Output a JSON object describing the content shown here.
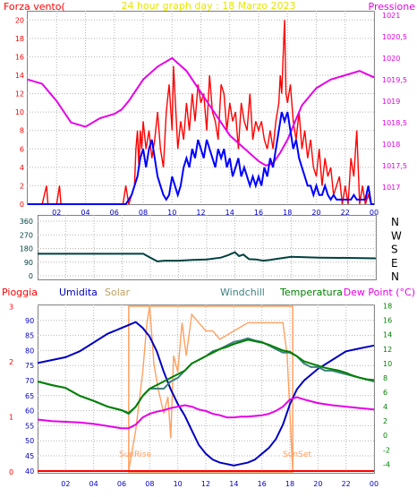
{
  "colors": {
    "frame": "#808080",
    "grid": "#b4b4b4",
    "title": "#e6e600",
    "wind_speed": "#ff0000",
    "wind_mean": "#0000ff",
    "pressure": "#e600e6",
    "direction": "#004040",
    "rain": "#ff0000",
    "humidity": "#0000c0",
    "solar": "#ffa060",
    "windchill": "#408080",
    "temperature": "#008000",
    "dewpoint": "#e600e6",
    "tick_blue": "#0000c0",
    "tick_green": "#008000"
  },
  "chart_data": [
    {
      "type": "line",
      "title": "24 hour graph day : 18 Marzo 2023",
      "left_label": "Forza vento(",
      "right_label": "Pressione",
      "x_ticks": [
        "02",
        "04",
        "06",
        "08",
        "10",
        "12",
        "14",
        "16",
        "18",
        "20",
        "22",
        "00"
      ],
      "y_ticks": [
        "0",
        "2",
        "4",
        "6",
        "8",
        "10",
        "12",
        "14",
        "16",
        "18",
        "20"
      ],
      "y2_ticks": [
        "1017",
        "1017,5",
        "1018",
        "1018,5",
        "1019",
        "1019,5",
        "1020",
        "1020,5",
        "1021"
      ],
      "ylim": [
        0,
        21
      ],
      "y2lim": [
        1016.6,
        1021.1
      ],
      "series": [
        {
          "key": "gust",
          "x": [
            0.0,
            1.0,
            1.3,
            1.4,
            2.0,
            2.2,
            2.3,
            3.0,
            6.6,
            6.8,
            7.0,
            7.2,
            7.4,
            7.5,
            7.6,
            7.7,
            7.8,
            7.9,
            8.0,
            8.2,
            8.4,
            8.6,
            8.8,
            9.0,
            9.2,
            9.4,
            9.6,
            9.8,
            10.0,
            10.1,
            10.2,
            10.4,
            10.6,
            10.8,
            11.0,
            11.2,
            11.4,
            11.6,
            11.8,
            12.0,
            12.2,
            12.4,
            12.6,
            12.8,
            13.0,
            13.2,
            13.4,
            13.6,
            13.8,
            14.0,
            14.2,
            14.4,
            14.6,
            14.8,
            15.0,
            15.2,
            15.4,
            15.6,
            15.8,
            16.0,
            16.2,
            16.4,
            16.6,
            16.8,
            17.0,
            17.2,
            17.4,
            17.5,
            17.6,
            17.7,
            17.8,
            17.9,
            18.0,
            18.2,
            18.4,
            18.6,
            18.8,
            19.0,
            19.2,
            19.4,
            19.6,
            19.8,
            20.0,
            20.2,
            20.4,
            20.6,
            20.8,
            21.0,
            21.2,
            21.4,
            21.6,
            21.8,
            22.0,
            22.2,
            22.4,
            22.6,
            22.8,
            23.0,
            23.2,
            23.4,
            23.6,
            23.8,
            24.0
          ],
          "y": [
            0,
            0,
            2,
            0,
            0,
            2,
            0,
            0,
            0,
            2,
            0,
            1,
            2,
            6,
            8,
            4,
            8,
            6,
            9,
            6,
            8,
            5,
            7,
            10,
            6,
            4,
            10,
            13,
            8,
            15,
            12,
            6,
            9,
            7,
            11,
            8,
            12,
            9,
            13,
            11,
            12,
            8,
            14,
            10,
            9,
            7,
            13,
            12,
            8,
            11,
            9,
            10,
            6,
            11,
            9,
            8,
            12,
            7,
            9,
            8,
            9,
            7,
            6,
            8,
            6,
            9,
            11,
            14,
            12,
            16,
            20,
            12,
            11,
            13,
            9,
            7,
            10,
            6,
            8,
            5,
            7,
            4,
            3,
            6,
            2,
            5,
            3,
            4,
            1,
            2,
            3,
            0,
            2,
            0,
            5,
            3,
            8,
            0,
            2,
            0,
            1,
            0,
            0
          ]
        },
        {
          "key": "mean",
          "x": [
            0.0,
            6.8,
            7.0,
            7.2,
            7.4,
            7.6,
            7.8,
            8.0,
            8.2,
            8.4,
            8.6,
            8.8,
            9.0,
            9.2,
            9.4,
            9.6,
            9.8,
            10.0,
            10.2,
            10.4,
            10.6,
            10.8,
            11.0,
            11.2,
            11.4,
            11.6,
            11.8,
            12.0,
            12.2,
            12.4,
            12.6,
            12.8,
            13.0,
            13.2,
            13.4,
            13.6,
            13.8,
            14.0,
            14.2,
            14.4,
            14.6,
            14.8,
            15.0,
            15.2,
            15.4,
            15.6,
            15.8,
            16.0,
            16.2,
            16.4,
            16.6,
            16.8,
            17.0,
            17.2,
            17.4,
            17.6,
            17.8,
            18.0,
            18.2,
            18.4,
            18.6,
            18.8,
            19.0,
            19.2,
            19.4,
            19.6,
            19.8,
            20.0,
            20.2,
            20.4,
            20.6,
            20.8,
            21.0,
            21.2,
            21.4,
            21.6,
            21.8,
            22.0,
            22.2,
            22.4,
            22.6,
            22.8,
            23.0,
            23.2,
            23.4,
            23.6,
            23.8,
            24.0
          ],
          "y": [
            0,
            0,
            0.5,
            1,
            2,
            3,
            5,
            6,
            4,
            6,
            7,
            5,
            3,
            2,
            1,
            0.5,
            1,
            3,
            2,
            1,
            2,
            4,
            5,
            4,
            6,
            5,
            7,
            6,
            5,
            7,
            6,
            5,
            4,
            6,
            5,
            6,
            4,
            5,
            3,
            4,
            5,
            3,
            4,
            3,
            2,
            3,
            2,
            3,
            2,
            4,
            3,
            5,
            4,
            6,
            8,
            10,
            9,
            10,
            8,
            6,
            7,
            5,
            4,
            3,
            2,
            2,
            1,
            2,
            1,
            1,
            2,
            1,
            0.5,
            1,
            0.5,
            0.5,
            0.5,
            0.5,
            0.5,
            0.5,
            1,
            0.5,
            0.5,
            0.5,
            0.5,
            2,
            0,
            0
          ]
        },
        {
          "key": "pressure",
          "axis": "right",
          "x": [
            0.0,
            1.0,
            2.0,
            3.0,
            4.0,
            5.0,
            6.0,
            6.5,
            7.0,
            8.0,
            9.0,
            10.0,
            11.0,
            12.0,
            13.0,
            14.0,
            15.0,
            16.0,
            16.5,
            17.0,
            17.5,
            18.0,
            18.5,
            19.0,
            20.0,
            21.0,
            22.0,
            23.0,
            24.0
          ],
          "y": [
            1019.5,
            1019.4,
            1019.0,
            1018.5,
            1018.4,
            1018.6,
            1018.7,
            1018.8,
            1019.0,
            1019.5,
            1019.8,
            1020.0,
            1019.7,
            1019.2,
            1018.7,
            1018.2,
            1017.9,
            1017.6,
            1017.5,
            1017.55,
            1017.8,
            1018.1,
            1018.5,
            1018.9,
            1019.3,
            1019.5,
            1019.6,
            1019.7,
            1019.55
          ]
        }
      ]
    },
    {
      "type": "line",
      "y_ticks": [
        "360",
        "270",
        "180",
        "90",
        "0"
      ],
      "y_tick_values": [
        360,
        270,
        180,
        90,
        0
      ],
      "right_ticks": [
        "N",
        "W",
        "S",
        "E",
        "N"
      ],
      "ylim": [
        0,
        360
      ],
      "series": [
        {
          "key": "direction",
          "x": [
            0.0,
            7.5,
            8.0,
            8.5,
            9.0,
            10.0,
            11.0,
            12.0,
            13.0,
            13.5,
            14.0,
            14.3,
            14.6,
            15.0,
            15.5,
            16.0,
            16.5,
            17.0,
            18.0,
            20.0,
            22.0,
            24.0
          ],
          "y": [
            145,
            145,
            120,
            95,
            100,
            100,
            105,
            108,
            120,
            135,
            155,
            130,
            140,
            110,
            108,
            100,
            105,
            112,
            125,
            120,
            118,
            115
          ]
        }
      ]
    },
    {
      "type": "line",
      "labels": [
        "Pioggia",
        "Umidita",
        "Solar",
        "Windchill",
        "Temperatura",
        "Dew Point (°C)"
      ],
      "x_ticks": [
        "02",
        "04",
        "06",
        "08",
        "10",
        "12",
        "14",
        "16",
        "18",
        "20",
        "22",
        "00"
      ],
      "y_ticks": [
        "",
        "90",
        "85",
        "80",
        "75",
        "70",
        "65",
        "60",
        "55",
        "50",
        "45",
        "40"
      ],
      "y2_ticks": [
        "18",
        "16",
        "14",
        "12",
        "10",
        "8",
        "6",
        "4",
        "2",
        "0",
        "-2",
        "-4"
      ],
      "rain_ticks": [
        "3",
        "2",
        "1",
        "0"
      ],
      "ylim": [
        38.5,
        96
      ],
      "y2lim": [
        -5.2,
        18.2
      ],
      "sunrise": 6.5,
      "sunset": 18.2,
      "sunrise_label": "SunRise",
      "sunset_label": "SunSet",
      "series": [
        {
          "key": "humidity",
          "x": [
            0.0,
            1.0,
            2.0,
            3.0,
            4.0,
            5.0,
            6.0,
            6.5,
            7.0,
            7.5,
            8.0,
            8.5,
            9.0,
            9.5,
            10.0,
            10.5,
            11.0,
            11.5,
            12.0,
            12.5,
            13.0,
            13.5,
            14.0,
            14.5,
            15.0,
            15.5,
            16.0,
            16.5,
            17.0,
            17.5,
            18.0,
            18.5,
            19.0,
            20.0,
            21.0,
            22.0,
            23.0,
            24.0
          ],
          "y": [
            76,
            77,
            78,
            80,
            83,
            86,
            88,
            89,
            90,
            88,
            85,
            80,
            73,
            67,
            62,
            58,
            53,
            48,
            45,
            43,
            42,
            41.5,
            41,
            41.5,
            42,
            43,
            45,
            47,
            50,
            55,
            62,
            67,
            70,
            74,
            77,
            80,
            81,
            82
          ]
        },
        {
          "key": "solar",
          "x": [
            6.5,
            7.0,
            7.5,
            7.8,
            8.0,
            8.3,
            8.6,
            9.0,
            9.3,
            9.5,
            9.7,
            10.0,
            10.3,
            10.6,
            11.0,
            11.5,
            12.0,
            12.5,
            13.0,
            14.0,
            15.0,
            16.0,
            17.0,
            17.5,
            17.8,
            18.0,
            18.2
          ],
          "y": [
            0,
            5,
            12,
            18,
            20,
            13,
            10,
            7,
            9,
            4,
            14,
            12,
            18,
            14,
            19,
            18,
            17,
            17,
            16,
            17,
            18,
            18,
            18,
            18,
            14,
            7,
            0
          ]
        },
        {
          "key": "windchill",
          "x": [
            0.0,
            1.0,
            2.0,
            3.0,
            4.0,
            5.0,
            6.0,
            6.5,
            7.0,
            7.5,
            8.0,
            8.5,
            9.0,
            9.5,
            10.0,
            10.5,
            11.0,
            11.5,
            12.0,
            12.5,
            13.0,
            13.5,
            14.0,
            14.5,
            15.0,
            15.5,
            16.0,
            16.5,
            17.0,
            17.5,
            18.0,
            18.5,
            19.0,
            19.5,
            20.0,
            20.5,
            21.0,
            22.0,
            23.0,
            24.0
          ],
          "y": [
            7.5,
            7.0,
            6.6,
            5.5,
            4.8,
            4.0,
            3.5,
            3.0,
            4.0,
            5.5,
            6.5,
            6.5,
            6.5,
            7.5,
            8.0,
            9.0,
            10.0,
            10.5,
            11.0,
            11.7,
            12.0,
            12.5,
            13.0,
            13.2,
            13.5,
            13.2,
            13.0,
            12.5,
            12.0,
            11.5,
            11.5,
            11.0,
            10.0,
            9.5,
            9.5,
            9.0,
            9.0,
            8.5,
            8.0,
            7.5
          ]
        },
        {
          "key": "temperature",
          "x": [
            0.0,
            1.0,
            2.0,
            3.0,
            4.0,
            5.0,
            6.0,
            6.5,
            7.0,
            7.5,
            8.0,
            8.5,
            9.0,
            9.5,
            10.0,
            10.5,
            11.0,
            11.5,
            12.0,
            12.5,
            13.0,
            13.5,
            14.0,
            14.5,
            15.0,
            15.5,
            16.0,
            16.5,
            17.0,
            17.5,
            18.0,
            18.5,
            19.0,
            19.5,
            20.0,
            20.5,
            21.0,
            21.5,
            22.0,
            22.5,
            23.0,
            23.5,
            24.0
          ],
          "y": [
            7.5,
            7.0,
            6.6,
            5.5,
            4.8,
            4.0,
            3.5,
            3.1,
            4.0,
            5.5,
            6.5,
            7.0,
            7.5,
            8.0,
            8.5,
            9.0,
            10.0,
            10.5,
            11.0,
            11.5,
            12.0,
            12.3,
            12.7,
            13.0,
            13.3,
            13.1,
            12.9,
            12.6,
            12.2,
            11.8,
            11.6,
            11.0,
            10.3,
            10.0,
            9.7,
            9.4,
            9.2,
            9.0,
            8.7,
            8.3,
            8.0,
            7.8,
            7.7
          ]
        },
        {
          "key": "dewpoint",
          "x": [
            0.0,
            1.0,
            2.0,
            3.0,
            4.0,
            5.0,
            6.0,
            6.5,
            7.0,
            7.5,
            8.0,
            8.5,
            9.0,
            9.5,
            10.0,
            10.5,
            11.0,
            11.5,
            12.0,
            12.5,
            13.0,
            13.5,
            14.0,
            14.5,
            15.0,
            15.5,
            16.0,
            16.5,
            17.0,
            17.5,
            18.0,
            18.5,
            19.0,
            20.0,
            21.0,
            22.0,
            23.0,
            24.0
          ],
          "y": [
            2.2,
            2.0,
            1.9,
            1.8,
            1.6,
            1.3,
            1.0,
            1.0,
            1.5,
            2.5,
            3.0,
            3.3,
            3.5,
            3.8,
            4.0,
            4.2,
            4.0,
            3.6,
            3.4,
            3.0,
            2.8,
            2.5,
            2.5,
            2.6,
            2.6,
            2.7,
            2.8,
            3.0,
            3.4,
            4.0,
            5.0,
            5.3,
            5.0,
            4.5,
            4.2,
            4.0,
            3.8,
            3.6
          ]
        },
        {
          "key": "rain",
          "x": [
            0.0,
            24.0
          ],
          "y": [
            0,
            0
          ]
        }
      ]
    }
  ]
}
